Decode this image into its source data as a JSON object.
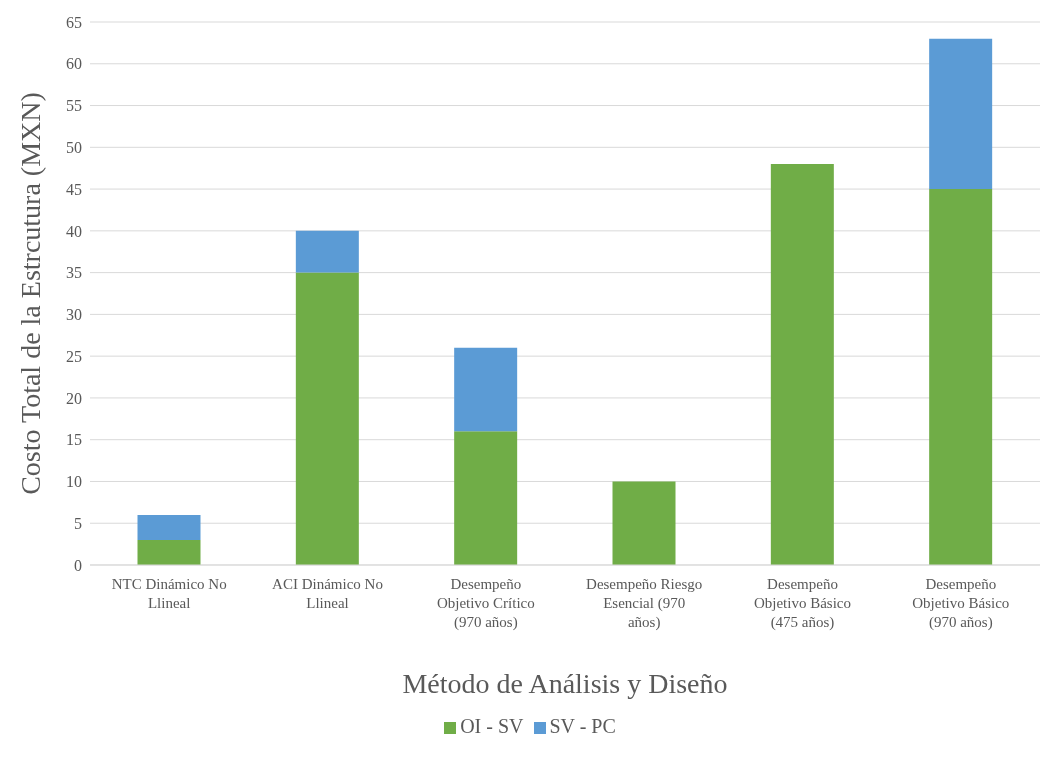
{
  "chart_data": {
    "type": "bar",
    "stacked": true,
    "xlabel": "Método de Análisis y Diseño",
    "ylabel": "Costo Total de la Estrcutura (MXN)",
    "categories": [
      "NTC Dinámico No Llineal",
      "ACI Dinámico No Llineal",
      "Desempeño Objetivo Crítico (970 años)",
      "Desempeño Riesgo Esencial (970 años)",
      "Desempeño Objetivo Básico (475 años)",
      "Desempeño Objetivo Básico (970 años)"
    ],
    "series": [
      {
        "name": "OI - SV",
        "color": "#70ad47",
        "values": [
          3,
          35,
          16,
          10,
          48,
          45
        ]
      },
      {
        "name": "SV - PC",
        "color": "#5b9bd5",
        "values": [
          3,
          5,
          10,
          0,
          0,
          18
        ]
      }
    ],
    "ylim": [
      0,
      65
    ],
    "yticks": [
      0,
      5,
      10,
      15,
      20,
      25,
      30,
      35,
      40,
      45,
      50,
      55,
      60,
      65
    ],
    "grid": "y",
    "legend": "bottom"
  }
}
